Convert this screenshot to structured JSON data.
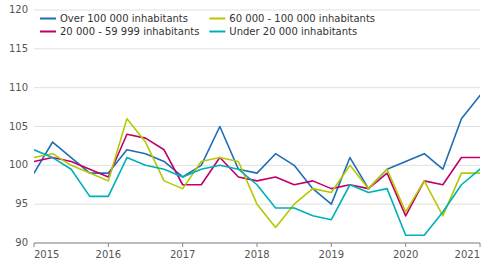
{
  "chart_data": {
    "type": "line",
    "x": [
      2015,
      2015.25,
      2015.5,
      2015.75,
      2016,
      2016.25,
      2016.5,
      2016.75,
      2017,
      2017.25,
      2017.5,
      2017.75,
      2018,
      2018.25,
      2018.5,
      2018.75,
      2019,
      2019.25,
      2019.5,
      2019.75,
      2020,
      2020.25,
      2020.5,
      2020.75,
      2021
    ],
    "series": [
      {
        "name": "Over 100 000 inhabitants",
        "color": "#1f6db5",
        "values": [
          99.0,
          103.0,
          101.0,
          99.0,
          99.0,
          102.0,
          101.5,
          100.5,
          98.5,
          100.0,
          105.0,
          99.5,
          99.0,
          101.5,
          100.0,
          97.0,
          95.0,
          101.0,
          97.0,
          99.5,
          100.5,
          101.5,
          99.5,
          106.0,
          109.0
        ]
      },
      {
        "name": "20 000 - 59 999 inhabitants",
        "color": "#c0006a",
        "values": [
          100.5,
          101.0,
          100.5,
          99.5,
          98.5,
          104.0,
          103.5,
          102.0,
          97.5,
          97.5,
          101.0,
          98.5,
          98.0,
          98.5,
          97.5,
          98.0,
          97.0,
          97.5,
          97.0,
          99.0,
          93.5,
          98.0,
          97.5,
          101.0,
          101.0
        ]
      },
      {
        "name": "60 000 - 100 000 inhabitants",
        "color": "#b5c800",
        "values": [
          101.0,
          101.5,
          100.0,
          99.0,
          98.0,
          106.0,
          103.0,
          98.0,
          97.0,
          100.5,
          101.0,
          100.5,
          95.0,
          92.0,
          95.0,
          97.0,
          96.5,
          100.0,
          97.0,
          99.5,
          94.0,
          98.0,
          93.5,
          99.0,
          99.0
        ]
      },
      {
        "name": "Under 20 000 inhabitants",
        "color": "#00b0b9",
        "values": [
          102.0,
          101.0,
          99.5,
          96.0,
          96.0,
          101.0,
          100.0,
          99.5,
          98.5,
          99.5,
          100.0,
          99.5,
          97.5,
          94.5,
          94.5,
          93.5,
          93.0,
          97.5,
          96.5,
          97.0,
          91.0,
          91.0,
          94.0,
          97.5,
          99.5
        ]
      }
    ],
    "xlim": [
      2015,
      2021
    ],
    "ylim": [
      90,
      120
    ],
    "xticks": [
      2015,
      2016,
      2017,
      2018,
      2019,
      2020,
      2021
    ],
    "yticks": [
      90,
      95,
      100,
      105,
      110,
      115,
      120
    ],
    "grid": true,
    "legend": "upper left"
  }
}
